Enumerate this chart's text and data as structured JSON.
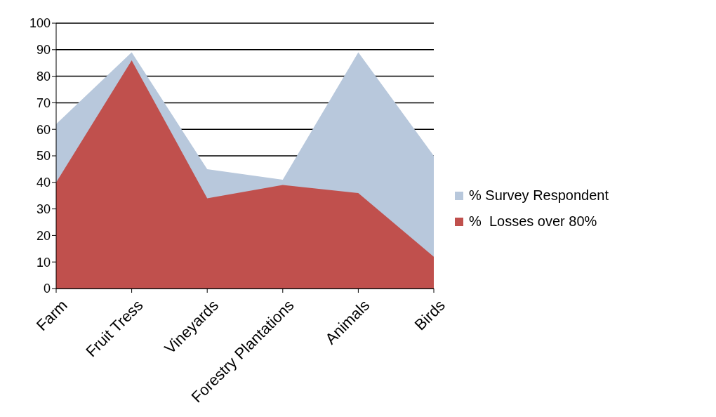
{
  "chart_data": {
    "type": "area",
    "categories": [
      "Farm",
      "Fruit Tress",
      "Vineyards",
      "Forestry Plantations",
      "Animals",
      "Birds"
    ],
    "series": [
      {
        "name": "% Survey Respondent",
        "color": "#b8c8dc",
        "values": [
          62,
          89,
          45,
          41,
          89,
          50
        ]
      },
      {
        "name": "%  Losses over 80%",
        "color": "#c0504d",
        "values": [
          40,
          86,
          34,
          39,
          36,
          12
        ]
      }
    ],
    "ylim": [
      0,
      100
    ],
    "yticks": [
      0,
      10,
      20,
      30,
      40,
      50,
      60,
      70,
      80,
      90,
      100
    ],
    "grid": "y",
    "legend": "right"
  }
}
